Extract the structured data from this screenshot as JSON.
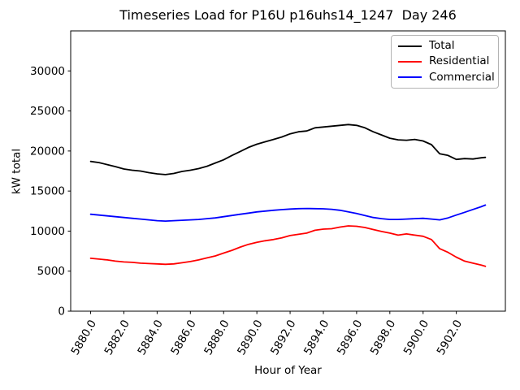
{
  "chart_data": {
    "type": "line",
    "title": "Timeseries Load for P16U p16uhs14_1247  Day 246",
    "xlabel": "Hour of Year",
    "ylabel": "kW total",
    "xlim": [
      5878.8,
      5904.95
    ],
    "ylim": [
      0,
      35000
    ],
    "grid": false,
    "legend_position": "upper right",
    "xticks": {
      "values": [
        5880,
        5882,
        5884,
        5886,
        5888,
        5890,
        5892,
        5894,
        5896,
        5898,
        5900,
        5902
      ],
      "labels": [
        "5880.0",
        "5882.0",
        "5884.0",
        "5886.0",
        "5888.0",
        "5890.0",
        "5892.0",
        "5894.0",
        "5896.0",
        "5898.0",
        "5900.0",
        "5902.0"
      ]
    },
    "yticks": {
      "values": [
        0,
        5000,
        10000,
        15000,
        20000,
        25000,
        30000
      ],
      "labels": [
        "0",
        "5000",
        "10000",
        "15000",
        "20000",
        "25000",
        "30000"
      ]
    },
    "x": [
      5880.0,
      5880.5,
      5881.0,
      5881.5,
      5882.0,
      5882.5,
      5883.0,
      5883.5,
      5884.0,
      5884.5,
      5885.0,
      5885.5,
      5886.0,
      5886.5,
      5887.0,
      5887.5,
      5888.0,
      5888.5,
      5889.0,
      5889.5,
      5890.0,
      5890.5,
      5891.0,
      5891.5,
      5892.0,
      5892.5,
      5893.0,
      5893.5,
      5894.0,
      5894.5,
      5895.0,
      5895.5,
      5896.0,
      5896.5,
      5897.0,
      5897.5,
      5898.0,
      5898.5,
      5899.0,
      5899.5,
      5900.0,
      5900.5,
      5901.0,
      5901.5,
      5902.0,
      5902.5,
      5903.0,
      5903.5,
      5903.75
    ],
    "series": [
      {
        "name": "Total",
        "color": "#000000",
        "values": [
          18700,
          18550,
          18300,
          18050,
          17750,
          17600,
          17500,
          17300,
          17150,
          17050,
          17200,
          17450,
          17600,
          17800,
          18100,
          18500,
          18900,
          19450,
          19950,
          20450,
          20850,
          21150,
          21450,
          21750,
          22150,
          22400,
          22500,
          22900,
          23000,
          23100,
          23200,
          23300,
          23200,
          22900,
          22400,
          22000,
          21600,
          21400,
          21350,
          21450,
          21250,
          20800,
          19650,
          19450,
          18950,
          19050,
          19000,
          19150,
          19200
        ]
      },
      {
        "name": "Residential",
        "color": "#ff0000",
        "values": [
          6600,
          6500,
          6400,
          6250,
          6150,
          6100,
          6000,
          5950,
          5900,
          5850,
          5900,
          6050,
          6200,
          6400,
          6650,
          6900,
          7250,
          7600,
          8000,
          8350,
          8600,
          8800,
          8950,
          9150,
          9450,
          9600,
          9750,
          10100,
          10250,
          10300,
          10500,
          10650,
          10600,
          10450,
          10200,
          9950,
          9750,
          9500,
          9650,
          9500,
          9350,
          8950,
          7800,
          7350,
          6750,
          6250,
          6000,
          5750,
          5600
        ]
      },
      {
        "name": "Commercial",
        "color": "#0000ff",
        "values": [
          12100,
          12000,
          11900,
          11800,
          11700,
          11600,
          11500,
          11400,
          11300,
          11250,
          11300,
          11350,
          11400,
          11450,
          11550,
          11650,
          11800,
          11950,
          12100,
          12250,
          12400,
          12500,
          12600,
          12680,
          12750,
          12800,
          12820,
          12800,
          12780,
          12720,
          12600,
          12400,
          12200,
          11950,
          11700,
          11550,
          11450,
          11450,
          11500,
          11550,
          11600,
          11500,
          11400,
          11650,
          12000,
          12350,
          12700,
          13050,
          13250
        ]
      }
    ]
  }
}
